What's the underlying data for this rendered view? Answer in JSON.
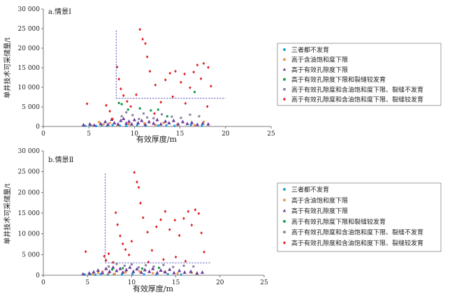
{
  "legend_labels": [
    "三者都不发育",
    "高于含油饱和度下限",
    "高于有效孔隙度下限",
    "高于有效孔隙度下限和裂缝较发育",
    "高于有效孔隙度和含油饱和度下限、裂缝不发育",
    "高于有效孔隙度和含油饱和度下限、裂缝较发育"
  ],
  "series_styles": [
    {
      "color": "#1ea0dc",
      "marker": "circle"
    },
    {
      "color": "#f0913c",
      "marker": "square"
    },
    {
      "color": "#6a3d9a",
      "marker": "triangle"
    },
    {
      "color": "#1a9e50",
      "marker": "circle"
    },
    {
      "color": "#8a7f9e",
      "marker": "square"
    },
    {
      "color": "#e31a1c",
      "marker": "diamond"
    }
  ],
  "cutoff_line_color": "#4a4ab8",
  "chart_data": [
    {
      "type": "scatter",
      "title": "a.情景Ⅰ",
      "xlabel": "有效厚度/m",
      "ylabel": "单井技术可采储量/t",
      "xlim": [
        0,
        25
      ],
      "ylim": [
        0,
        30000
      ],
      "xticks": [
        "0",
        "5",
        "10",
        "15",
        "20",
        "25"
      ],
      "yticks": [
        "0",
        "5 000",
        "10 000",
        "15 000",
        "20 000",
        "25 000",
        "30 000"
      ],
      "cutoff": {
        "x": 8,
        "y": 7200,
        "x_end": 20,
        "y_top": 24500
      },
      "series": [
        {
          "name": "三者都不发育",
          "points": [
            [
              4.6,
              150
            ],
            [
              5.2,
              300
            ],
            [
              5.8,
              100
            ],
            [
              6.4,
              250
            ],
            [
              7.0,
              150
            ],
            [
              7.6,
              350
            ],
            [
              8.4,
              200
            ],
            [
              9.1,
              120
            ],
            [
              10.3,
              300
            ],
            [
              11.2,
              150
            ],
            [
              12.6,
              200
            ],
            [
              13.5,
              250
            ],
            [
              14.4,
              150
            ],
            [
              16.2,
              400
            ],
            [
              17.4,
              150
            ]
          ]
        },
        {
          "name": "高于含油饱和度下限",
          "points": [
            [
              5.5,
              200
            ],
            [
              6.1,
              1100
            ],
            [
              6.6,
              500
            ],
            [
              7.3,
              900
            ],
            [
              8.2,
              300
            ],
            [
              9.4,
              600
            ],
            [
              11.1,
              800
            ],
            [
              12.3,
              400
            ],
            [
              13.2,
              900
            ],
            [
              14.7,
              500
            ],
            [
              16.6,
              300
            ],
            [
              17.6,
              1200
            ]
          ]
        },
        {
          "name": "高于有效孔隙度下限",
          "points": [
            [
              4.4,
              400
            ],
            [
              5.1,
              600
            ],
            [
              5.6,
              300
            ],
            [
              6.3,
              700
            ],
            [
              6.8,
              1200
            ],
            [
              7.1,
              500
            ],
            [
              7.5,
              1800
            ],
            [
              7.8,
              900
            ],
            [
              8.2,
              600
            ],
            [
              8.5,
              1500
            ],
            [
              8.8,
              2000
            ],
            [
              9.1,
              800
            ],
            [
              9.4,
              1300
            ],
            [
              9.7,
              600
            ],
            [
              10.0,
              1700
            ],
            [
              10.4,
              900
            ],
            [
              10.8,
              1500
            ],
            [
              11.2,
              500
            ],
            [
              11.6,
              1200
            ],
            [
              12.1,
              800
            ],
            [
              12.5,
              1700
            ],
            [
              12.9,
              600
            ],
            [
              13.4,
              1300
            ],
            [
              13.8,
              900
            ],
            [
              14.3,
              1500
            ],
            [
              14.8,
              600
            ],
            [
              15.3,
              1200
            ],
            [
              15.8,
              700
            ],
            [
              16.3,
              1000
            ],
            [
              16.9,
              500
            ],
            [
              17.5,
              800
            ],
            [
              18.1,
              600
            ]
          ]
        },
        {
          "name": "高于有效孔隙度下限和裂缝较发育",
          "points": [
            [
              8.3,
              6000
            ],
            [
              8.6,
              5700
            ],
            [
              9.3,
              4300
            ],
            [
              10.6,
              4600
            ],
            [
              11.8,
              4100
            ],
            [
              12.6,
              4300
            ],
            [
              13.6,
              2600
            ],
            [
              16.6,
              8800
            ]
          ]
        },
        {
          "name": "高于有效孔隙度和含油饱和度下限、裂缝不发育",
          "points": [
            [
              8.6,
              2600
            ],
            [
              9.1,
              3600
            ],
            [
              9.8,
              2900
            ],
            [
              10.5,
              1900
            ],
            [
              11.0,
              3300
            ],
            [
              11.4,
              2300
            ],
            [
              12.1,
              2100
            ],
            [
              13.0,
              3100
            ],
            [
              14.1,
              2500
            ],
            [
              15.1,
              2200
            ],
            [
              16.1,
              3000
            ],
            [
              17.1,
              2600
            ]
          ]
        },
        {
          "name": "高于有效孔隙度和含油饱和度下限、裂缝较发育",
          "points": [
            [
              4.8,
              5800
            ],
            [
              6.9,
              5400
            ],
            [
              7.3,
              3900
            ],
            [
              7.6,
              1900
            ],
            [
              8.1,
              15200
            ],
            [
              8.3,
              12100
            ],
            [
              8.5,
              9600
            ],
            [
              8.8,
              7900
            ],
            [
              9.2,
              6400
            ],
            [
              9.6,
              5100
            ],
            [
              10.2,
              8100
            ],
            [
              10.6,
              24800
            ],
            [
              10.9,
              22300
            ],
            [
              11.2,
              21200
            ],
            [
              11.4,
              17800
            ],
            [
              11.7,
              14100
            ],
            [
              12.3,
              10600
            ],
            [
              12.9,
              6200
            ],
            [
              13.4,
              11900
            ],
            [
              13.9,
              13600
            ],
            [
              14.5,
              14100
            ],
            [
              15.1,
              11300
            ],
            [
              15.5,
              13400
            ],
            [
              16.1,
              9900
            ],
            [
              16.5,
              13900
            ],
            [
              16.9,
              15700
            ],
            [
              17.3,
              12200
            ],
            [
              17.6,
              16100
            ],
            [
              18.1,
              15100
            ],
            [
              18.4,
              10300
            ],
            [
              15.6,
              5900
            ],
            [
              14.2,
              7600
            ],
            [
              12.2,
              3300
            ],
            [
              18.0,
              5100
            ]
          ]
        }
      ]
    },
    {
      "type": "scatter",
      "title": "b.情景Ⅱ",
      "xlabel": "有效厚度/m",
      "ylabel": "单井技术可采储量/t",
      "xlim": [
        0,
        25
      ],
      "ylim": [
        0,
        30000
      ],
      "xticks": [
        "0",
        "5",
        "10",
        "15",
        "20",
        "25"
      ],
      "yticks": [
        "0",
        "5 000",
        "10 000",
        "15 000",
        "20 000",
        "25 000",
        "30 000"
      ],
      "cutoff": {
        "x": 7,
        "y": 3000,
        "x_end": 19,
        "y_top": 24500
      },
      "series": [
        {
          "name": "三者都不发育",
          "points": [
            [
              4.7,
              150
            ],
            [
              5.3,
              250
            ],
            [
              5.9,
              100
            ],
            [
              6.5,
              300
            ],
            [
              7.3,
              150
            ],
            [
              8.0,
              250
            ],
            [
              8.9,
              150
            ],
            [
              10.1,
              300
            ],
            [
              11.4,
              200
            ],
            [
              12.8,
              150
            ],
            [
              14.1,
              250
            ],
            [
              15.6,
              150
            ]
          ]
        },
        {
          "name": "高于含油饱和度下限",
          "points": [
            [
              5.6,
              200
            ],
            [
              6.2,
              600
            ],
            [
              6.7,
              900
            ],
            [
              7.4,
              500
            ],
            [
              8.1,
              300
            ],
            [
              9.3,
              700
            ],
            [
              10.9,
              900
            ],
            [
              12.4,
              500
            ],
            [
              13.7,
              800
            ],
            [
              15.2,
              400
            ],
            [
              16.8,
              600
            ]
          ]
        },
        {
          "name": "高于有效孔隙度下限",
          "points": [
            [
              4.5,
              300
            ],
            [
              5.2,
              500
            ],
            [
              5.7,
              800
            ],
            [
              6.2,
              1200
            ],
            [
              6.7,
              600
            ],
            [
              7.1,
              1600
            ],
            [
              7.5,
              900
            ],
            [
              7.9,
              1900
            ],
            [
              8.3,
              1100
            ],
            [
              8.7,
              1600
            ],
            [
              9.0,
              700
            ],
            [
              9.4,
              1300
            ],
            [
              9.8,
              1900
            ],
            [
              10.2,
              900
            ],
            [
              10.6,
              1500
            ],
            [
              11.1,
              700
            ],
            [
              11.5,
              1300
            ],
            [
              12.0,
              900
            ],
            [
              12.4,
              1600
            ],
            [
              12.9,
              600
            ],
            [
              13.3,
              1200
            ],
            [
              13.8,
              800
            ],
            [
              14.3,
              1400
            ],
            [
              14.8,
              600
            ],
            [
              15.4,
              1100
            ],
            [
              16.0,
              700
            ],
            [
              16.7,
              900
            ],
            [
              17.4,
              500
            ],
            [
              18.0,
              700
            ]
          ]
        },
        {
          "name": "高于有效孔隙度下限和裂缝较发育",
          "points": [
            [
              7.8,
              1400
            ],
            [
              9.0,
              1700
            ],
            [
              11.2,
              1600
            ],
            [
              13.1,
              1800
            ]
          ]
        },
        {
          "name": "高于有效孔隙度和含油饱和度下限、裂缝不发育",
          "points": [
            [
              7.4,
              2100
            ],
            [
              8.3,
              2700
            ],
            [
              9.2,
              2300
            ],
            [
              10.0,
              2600
            ],
            [
              10.8,
              1900
            ],
            [
              11.6,
              2400
            ],
            [
              12.5,
              2100
            ],
            [
              13.6,
              2500
            ],
            [
              14.7,
              2000
            ],
            [
              15.9,
              2300
            ],
            [
              17.0,
              2100
            ]
          ]
        },
        {
          "name": "高于有效孔隙度和含油饱和度下限、裂缝较发育",
          "points": [
            [
              4.8,
              5700
            ],
            [
              6.9,
              4600
            ],
            [
              7.1,
              3600
            ],
            [
              7.4,
              5200
            ],
            [
              7.9,
              3100
            ],
            [
              8.2,
              15100
            ],
            [
              8.4,
              12200
            ],
            [
              8.7,
              9500
            ],
            [
              9.0,
              7600
            ],
            [
              9.3,
              6200
            ],
            [
              9.7,
              4900
            ],
            [
              10.0,
              8200
            ],
            [
              10.3,
              24800
            ],
            [
              10.6,
              22500
            ],
            [
              10.8,
              21200
            ],
            [
              11.0,
              17400
            ],
            [
              11.3,
              13900
            ],
            [
              11.8,
              10400
            ],
            [
              12.3,
              6000
            ],
            [
              12.8,
              11700
            ],
            [
              13.3,
              13400
            ],
            [
              13.8,
              15400
            ],
            [
              14.3,
              11000
            ],
            [
              14.9,
              13300
            ],
            [
              15.4,
              9600
            ],
            [
              15.9,
              13700
            ],
            [
              16.4,
              15400
            ],
            [
              16.8,
              12100
            ],
            [
              17.2,
              15800
            ],
            [
              17.6,
              14900
            ],
            [
              17.9,
              10200
            ],
            [
              18.2,
              5600
            ],
            [
              15.0,
              4400
            ],
            [
              13.6,
              3800
            ],
            [
              11.9,
              3200
            ],
            [
              16.1,
              3400
            ]
          ]
        }
      ]
    }
  ]
}
